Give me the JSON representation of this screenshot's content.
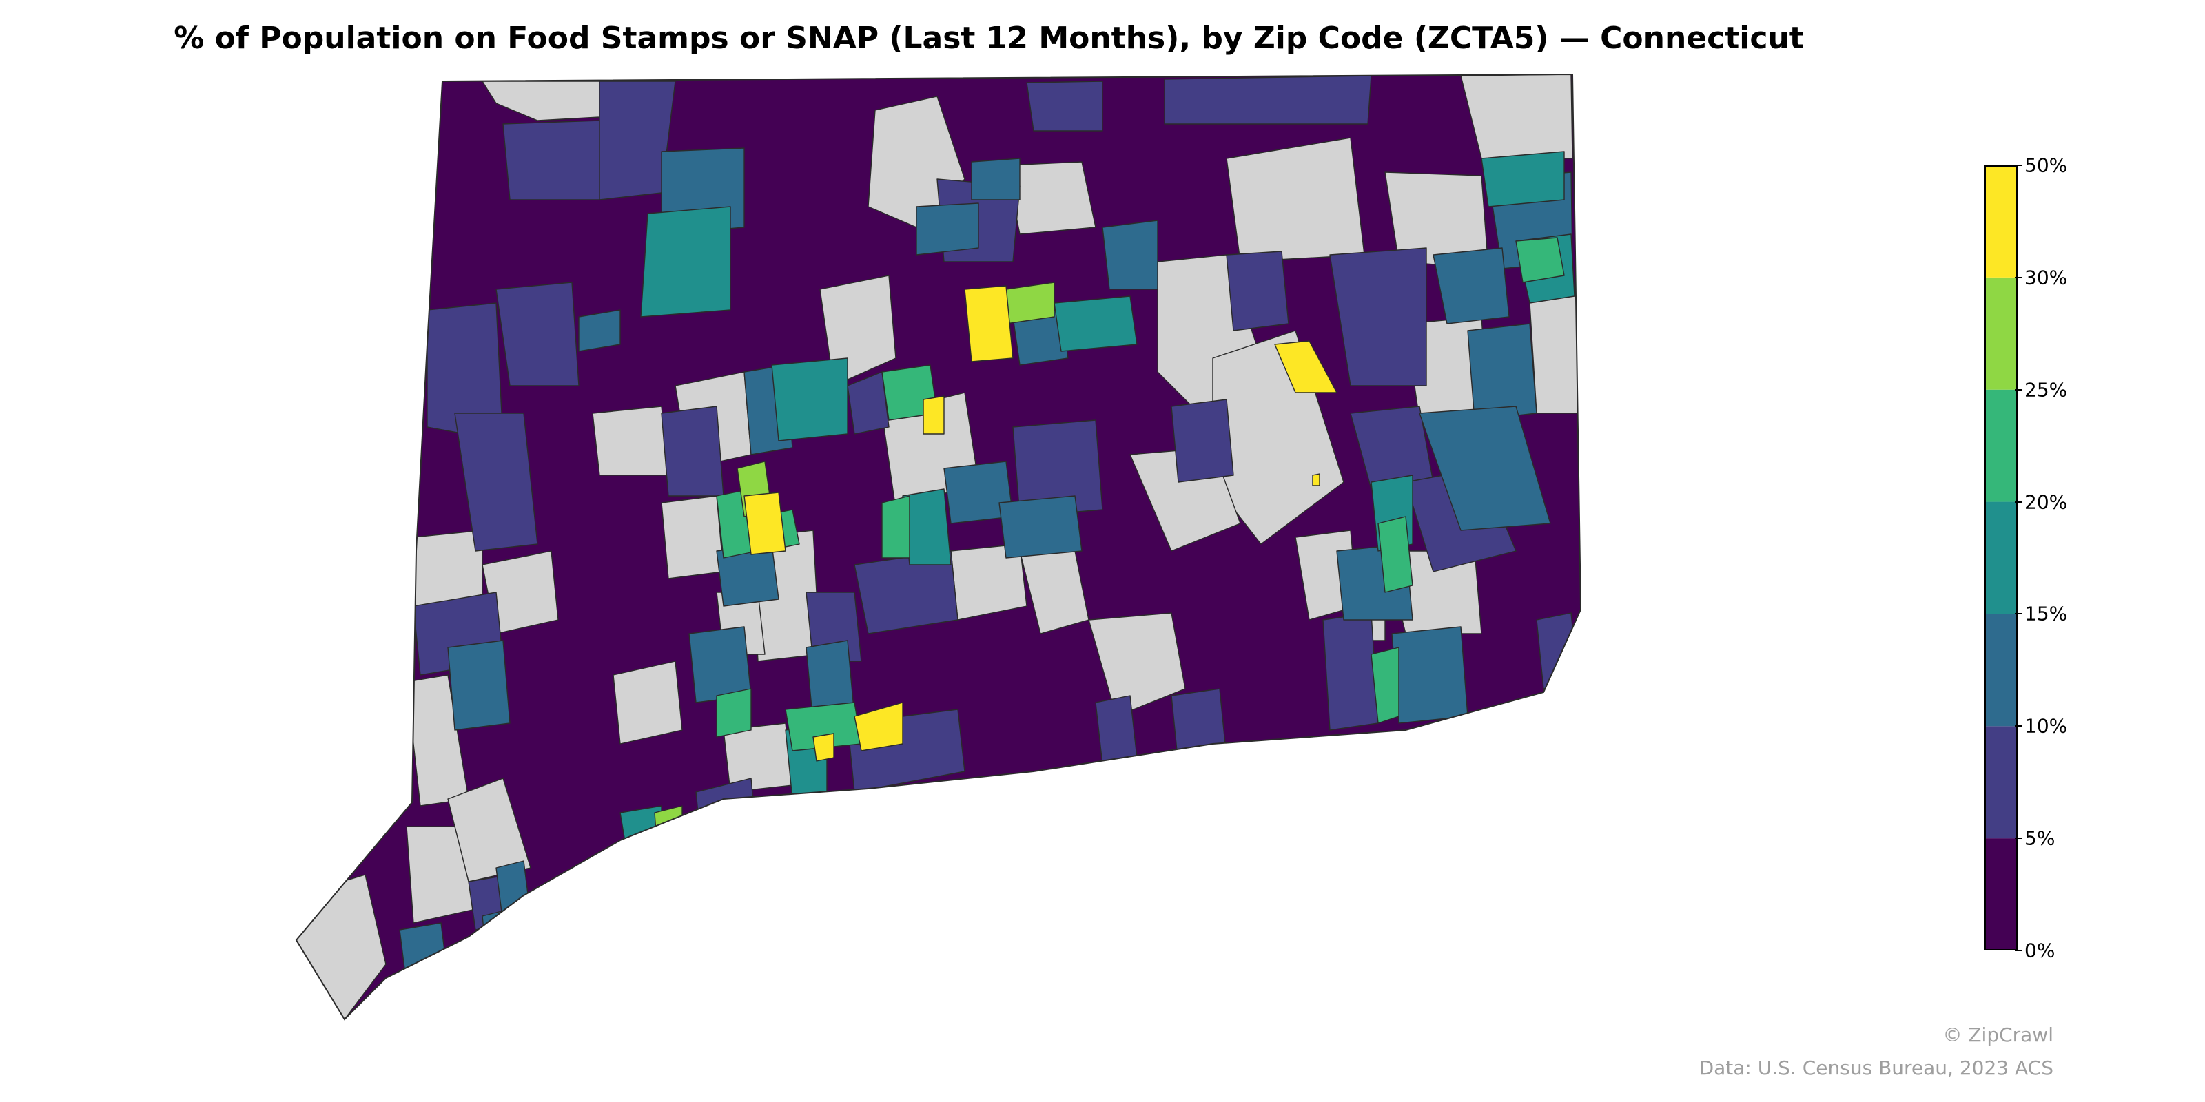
{
  "title": "% of Population on Food Stamps or SNAP (Last 12 Months), by Zip Code (ZCTA5) — Connecticut",
  "colorbar": {
    "ticks": [
      "0%",
      "5%",
      "10%",
      "15%",
      "20%",
      "25%",
      "30%",
      "50%"
    ],
    "bins": [
      {
        "from": 0,
        "to": 5,
        "color": "#440154"
      },
      {
        "from": 5,
        "to": 10,
        "color": "#433e85"
      },
      {
        "from": 10,
        "to": 15,
        "color": "#2e6b8e"
      },
      {
        "from": 15,
        "to": 20,
        "color": "#20908d"
      },
      {
        "from": 20,
        "to": 25,
        "color": "#35b779"
      },
      {
        "from": 25,
        "to": 30,
        "color": "#8fd744"
      },
      {
        "from": 30,
        "to": 50,
        "color": "#fde725"
      }
    ]
  },
  "no_data_color": "#d3d3d3",
  "credit": "© ZipCrawl",
  "source": "Data: U.S. Census Bureau, 2023 ACS"
}
